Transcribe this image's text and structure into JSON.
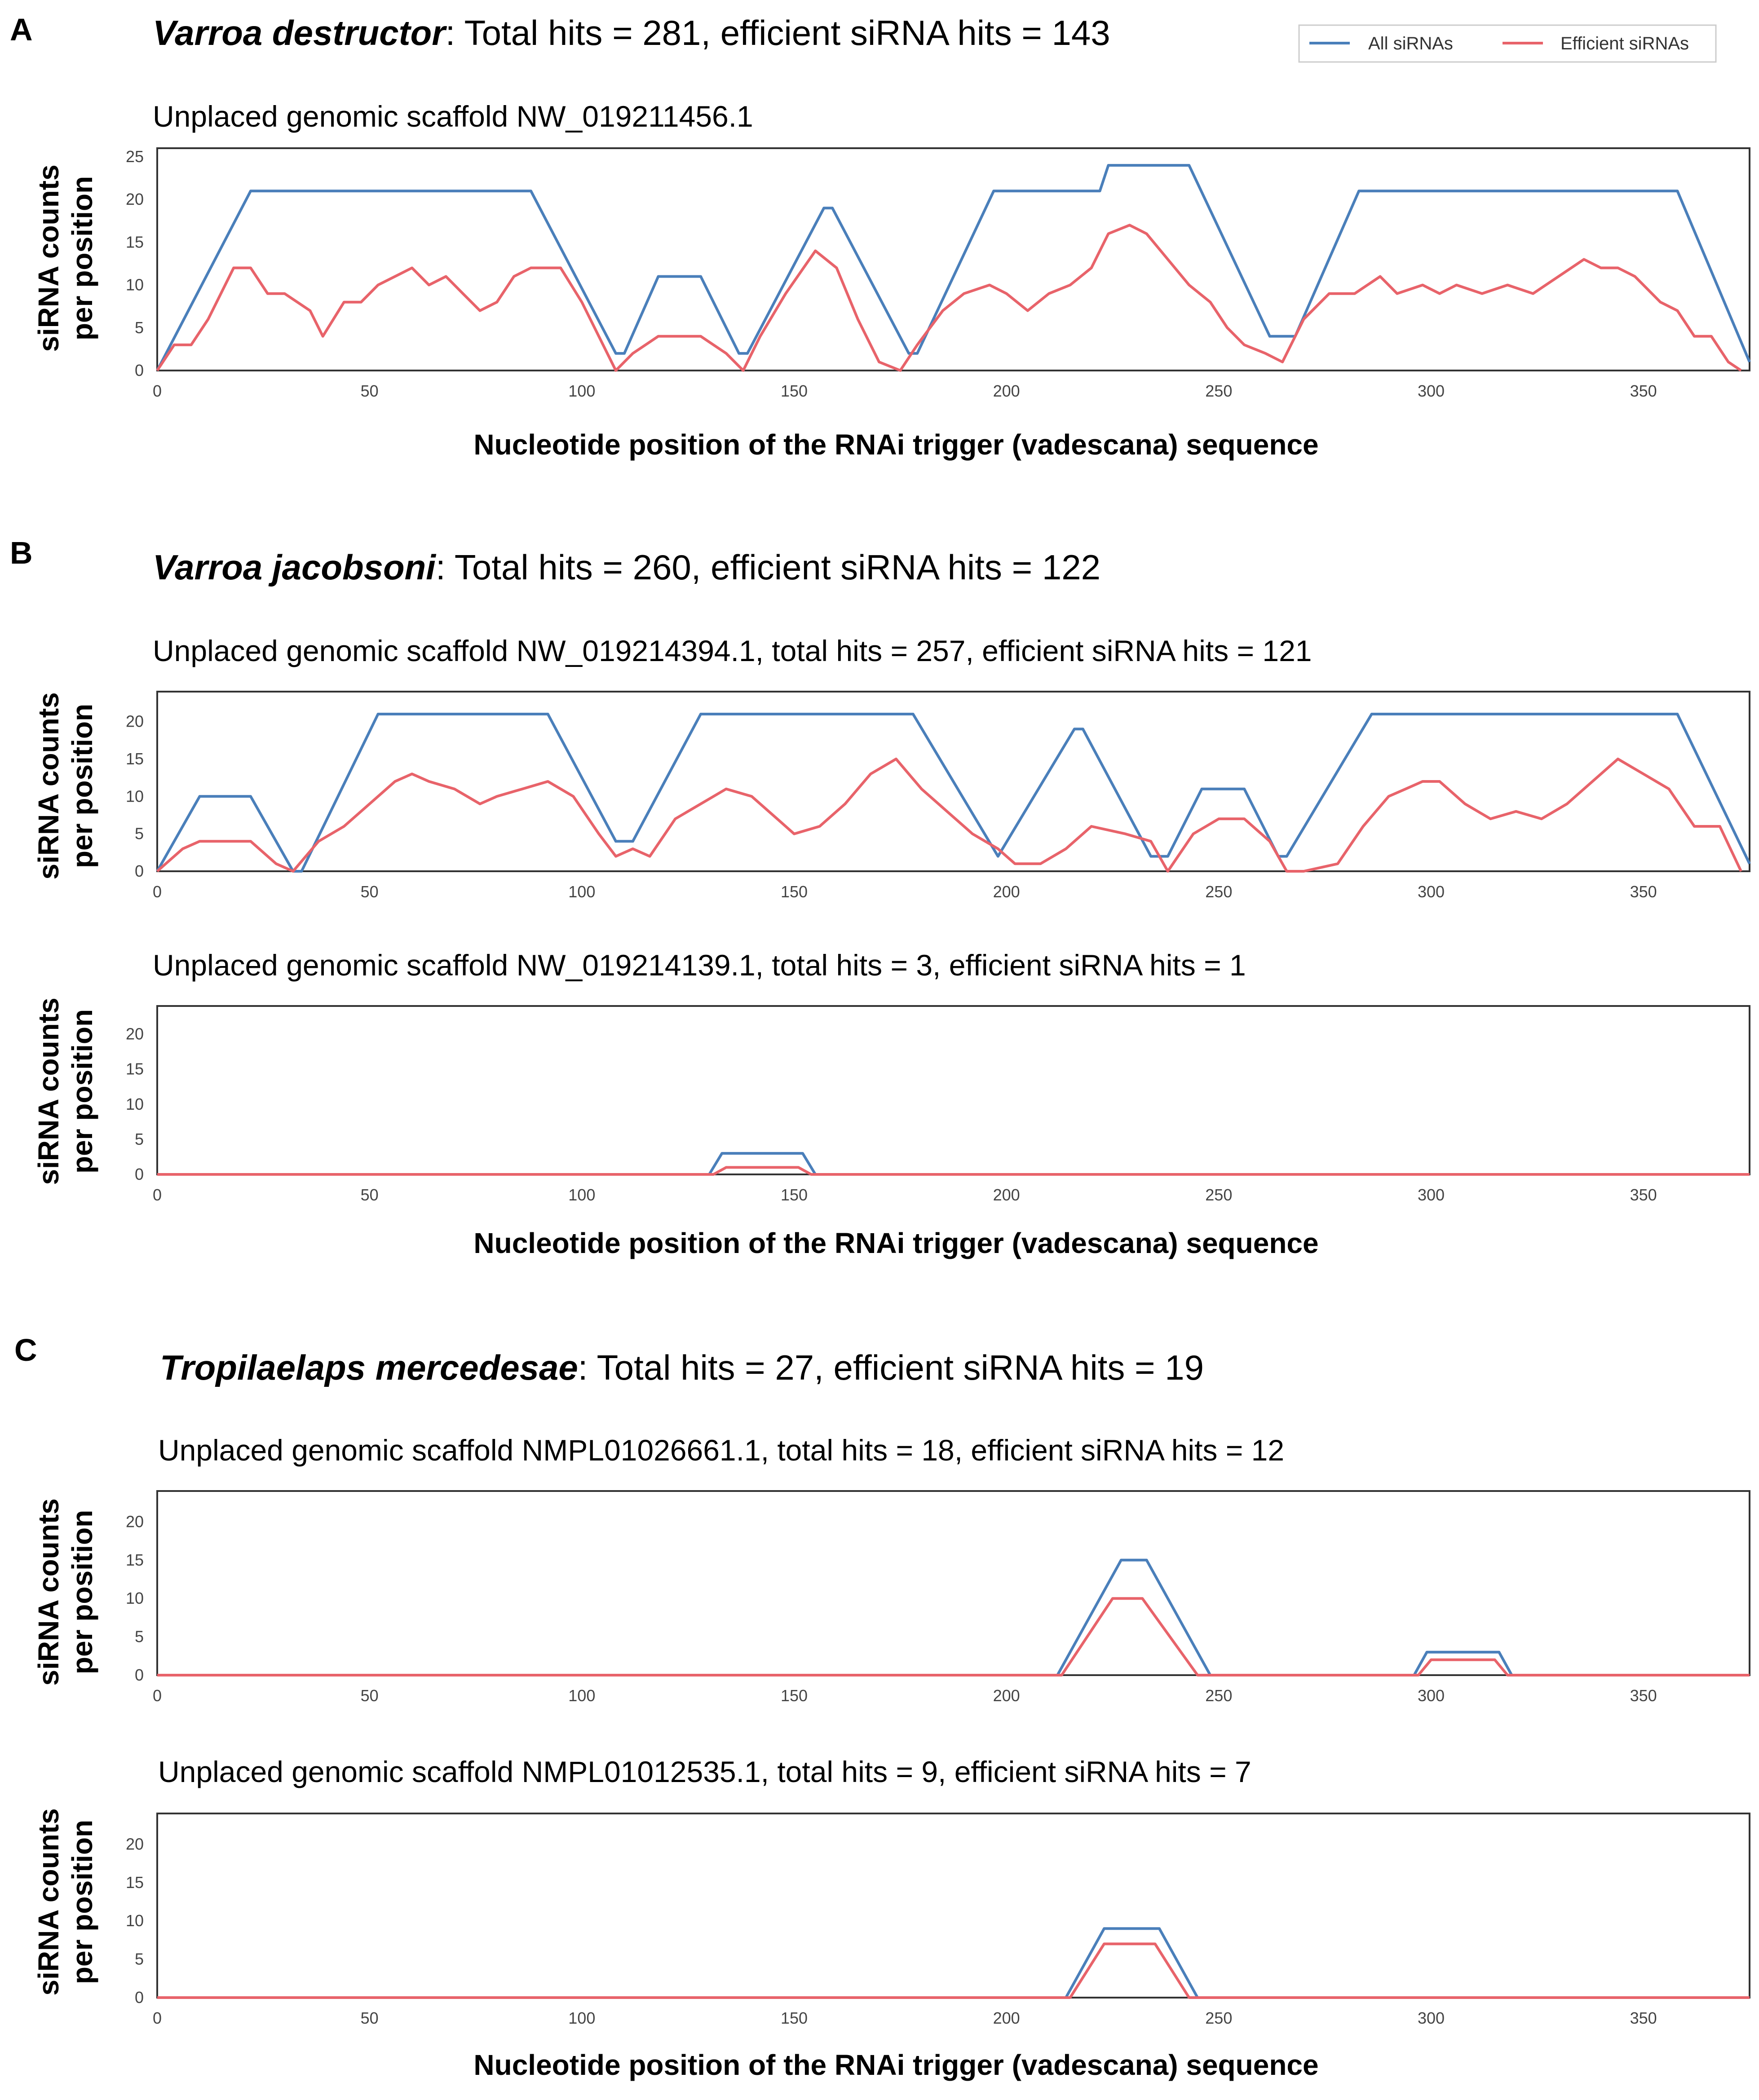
{
  "panels": [
    {
      "letter": "A",
      "species": "Varroa destructor",
      "summary": ": Total hits = 281, efficient siRNA hits = 143"
    },
    {
      "letter": "B",
      "species": "Varroa jacobsoni",
      "summary": ": Total hits = 260, efficient siRNA hits = 122"
    },
    {
      "letter": "C",
      "species": "Tropilaelaps mercedesae",
      "summary": ": Total hits = 27, efficient siRNA hits = 19"
    }
  ],
  "legend": {
    "all": "All siRNAs",
    "efficient": "Efficient siRNAs"
  },
  "colors": {
    "all": "#4a7fba",
    "efficient": "#e8636a",
    "axis": "#333333"
  },
  "xlabel": "Nucleotide position of the RNAi trigger (vadescana) sequence",
  "ylabel_line1": "siRNA counts",
  "ylabel_line2": "per position",
  "chart_data": [
    {
      "type": "line",
      "title": "Unplaced genomic scaffold NW_019211456.1",
      "xlim": [
        0,
        375
      ],
      "ylim": [
        0,
        26
      ],
      "xticks": [
        0,
        50,
        100,
        150,
        200,
        250,
        300,
        350
      ],
      "yticks": [
        0,
        5,
        10,
        15,
        20,
        25
      ],
      "series": [
        {
          "name": "All siRNAs",
          "x": [
            0,
            22,
            88,
            108,
            110,
            118,
            128,
            137,
            139,
            157,
            159,
            177,
            179,
            197,
            222,
            224,
            243,
            262,
            268,
            283,
            358,
            375
          ],
          "y": [
            0,
            21,
            21,
            2,
            2,
            11,
            11,
            2,
            2,
            19,
            19,
            2,
            2,
            21,
            21,
            24,
            24,
            4,
            4,
            21,
            21,
            1
          ]
        },
        {
          "name": "Efficient siRNAs",
          "x": [
            0,
            4,
            8,
            12,
            18,
            22,
            26,
            30,
            36,
            39,
            44,
            48,
            52,
            56,
            60,
            64,
            68,
            72,
            76,
            80,
            84,
            88,
            95,
            100,
            108,
            112,
            118,
            124,
            128,
            134,
            138,
            142,
            148,
            155,
            160,
            165,
            170,
            175,
            179,
            185,
            190,
            196,
            200,
            205,
            210,
            215,
            220,
            224,
            229,
            233,
            238,
            243,
            248,
            252,
            256,
            261,
            265,
            270,
            276,
            282,
            288,
            292,
            298,
            302,
            306,
            312,
            318,
            324,
            330,
            336,
            340,
            344,
            348,
            354,
            358,
            362,
            366,
            370,
            373
          ],
          "y": [
            0,
            3,
            3,
            6,
            12,
            12,
            9,
            9,
            7,
            4,
            8,
            8,
            10,
            11,
            12,
            10,
            11,
            9,
            7,
            8,
            11,
            12,
            12,
            8,
            0,
            2,
            4,
            4,
            4,
            2,
            0,
            4,
            9,
            14,
            12,
            6,
            1,
            0,
            3,
            7,
            9,
            10,
            9,
            7,
            9,
            10,
            12,
            16,
            17,
            16,
            13,
            10,
            8,
            5,
            3,
            2,
            1,
            6,
            9,
            9,
            11,
            9,
            10,
            9,
            10,
            9,
            10,
            9,
            11,
            13,
            12,
            12,
            11,
            8,
            7,
            4,
            4,
            1,
            0
          ]
        }
      ]
    },
    {
      "type": "line",
      "title": "Unplaced genomic scaffold NW_019214394.1, total hits = 257, efficient siRNA hits = 121",
      "xlim": [
        0,
        375
      ],
      "ylim": [
        0,
        24
      ],
      "xticks": [
        0,
        50,
        100,
        150,
        200,
        250,
        300,
        350
      ],
      "yticks": [
        0,
        5,
        10,
        15,
        20
      ],
      "series": [
        {
          "name": "All siRNAs",
          "x": [
            0,
            10,
            22,
            32,
            34,
            52,
            92,
            108,
            112,
            128,
            178,
            198,
            216,
            218,
            234,
            238,
            246,
            256,
            264,
            266,
            286,
            358,
            375
          ],
          "y": [
            0,
            10,
            10,
            0,
            0,
            21,
            21,
            4,
            4,
            21,
            21,
            2,
            19,
            19,
            2,
            2,
            11,
            11,
            2,
            2,
            21,
            21,
            1
          ]
        },
        {
          "name": "Efficient siRNAs",
          "x": [
            0,
            6,
            10,
            22,
            28,
            32,
            38,
            44,
            50,
            56,
            60,
            64,
            70,
            76,
            80,
            86,
            92,
            98,
            104,
            108,
            112,
            116,
            122,
            128,
            134,
            140,
            146,
            150,
            156,
            162,
            168,
            174,
            180,
            186,
            192,
            198,
            202,
            208,
            214,
            220,
            228,
            234,
            238,
            244,
            250,
            256,
            262,
            266,
            270,
            278,
            284,
            290,
            294,
            298,
            302,
            308,
            314,
            320,
            326,
            332,
            338,
            344,
            350,
            356,
            362,
            368,
            373
          ],
          "y": [
            0,
            3,
            4,
            4,
            1,
            0,
            4,
            6,
            9,
            12,
            13,
            12,
            11,
            9,
            10,
            11,
            12,
            10,
            5,
            2,
            3,
            2,
            7,
            9,
            11,
            10,
            7,
            5,
            6,
            9,
            13,
            15,
            11,
            8,
            5,
            3,
            1,
            1,
            3,
            6,
            5,
            4,
            0,
            5,
            7,
            7,
            4,
            0,
            0,
            1,
            6,
            10,
            11,
            12,
            12,
            9,
            7,
            8,
            7,
            9,
            12,
            15,
            13,
            11,
            6,
            6,
            0
          ]
        }
      ]
    },
    {
      "type": "line",
      "title": "Unplaced genomic scaffold NW_019214139.1, total hits = 3, efficient siRNA hits = 1",
      "xlim": [
        0,
        375
      ],
      "ylim": [
        0,
        24
      ],
      "xticks": [
        0,
        50,
        100,
        150,
        200,
        250,
        300,
        350
      ],
      "yticks": [
        0,
        5,
        10,
        15,
        20
      ],
      "series": [
        {
          "name": "All siRNAs",
          "x": [
            0,
            130,
            133,
            152,
            155,
            375
          ],
          "y": [
            0,
            0,
            3,
            3,
            0,
            0
          ]
        },
        {
          "name": "Efficient siRNAs",
          "x": [
            0,
            131,
            134,
            151,
            154,
            375
          ],
          "y": [
            0,
            0,
            1,
            1,
            0,
            0
          ]
        }
      ]
    },
    {
      "type": "line",
      "title": "Unplaced genomic scaffold NMPL01026661.1, total hits = 18, efficient siRNA hits = 12",
      "xlim": [
        0,
        375
      ],
      "ylim": [
        0,
        24
      ],
      "xticks": [
        0,
        50,
        100,
        150,
        200,
        250,
        300,
        350
      ],
      "yticks": [
        0,
        5,
        10,
        15,
        20
      ],
      "series": [
        {
          "name": "All siRNAs",
          "x": [
            0,
            212,
            227,
            233,
            248,
            296,
            299,
            316,
            319,
            375
          ],
          "y": [
            0,
            0,
            15,
            15,
            0,
            0,
            3,
            3,
            0,
            0
          ]
        },
        {
          "name": "Efficient siRNAs",
          "x": [
            0,
            213,
            225,
            232,
            245,
            297,
            300,
            315,
            318,
            375
          ],
          "y": [
            0,
            0,
            10,
            10,
            0,
            0,
            2,
            2,
            0,
            0
          ]
        }
      ]
    },
    {
      "type": "line",
      "title": "Unplaced genomic scaffold NMPL01012535.1, total hits = 9, efficient siRNA hits = 7",
      "xlim": [
        0,
        375
      ],
      "ylim": [
        0,
        24
      ],
      "xticks": [
        0,
        50,
        100,
        150,
        200,
        250,
        300,
        350
      ],
      "yticks": [
        0,
        5,
        10,
        15,
        20
      ],
      "series": [
        {
          "name": "All siRNAs",
          "x": [
            0,
            214,
            223,
            236,
            245,
            375
          ],
          "y": [
            0,
            0,
            9,
            9,
            0,
            0
          ]
        },
        {
          "name": "Efficient siRNAs",
          "x": [
            0,
            215,
            223,
            235,
            243,
            375
          ],
          "y": [
            0,
            0,
            7,
            7,
            0,
            0
          ]
        }
      ]
    }
  ]
}
